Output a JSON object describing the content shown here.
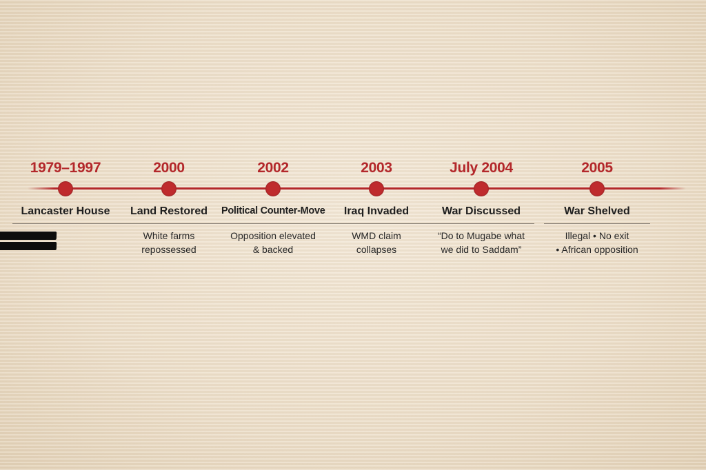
{
  "events": [
    {
      "year": "1979–1997",
      "title": "Lancaster House",
      "line1": "",
      "line2": "",
      "redacted": true
    },
    {
      "year": "2000",
      "title": "Land Restored",
      "line1": "White farms",
      "line2": "repossessed"
    },
    {
      "year": "2002",
      "title": "Political Counter-Move",
      "line1": "Opposition elevated",
      "line2": "& backed"
    },
    {
      "year": "2003",
      "title": "Iraq Invaded",
      "line1": "WMD claim",
      "line2": "collapses"
    },
    {
      "year": "July 2004",
      "title": "War Discussed",
      "line1": "“Do to Mugabe what",
      "line2": "we did to Saddam”"
    },
    {
      "year": "2005",
      "title": "War Shelved",
      "line1": "Illegal • No exit",
      "line2": "• African opposition"
    }
  ],
  "colors": {
    "accent": "#b3272a",
    "background": "#eddfca",
    "text": "#222222"
  }
}
